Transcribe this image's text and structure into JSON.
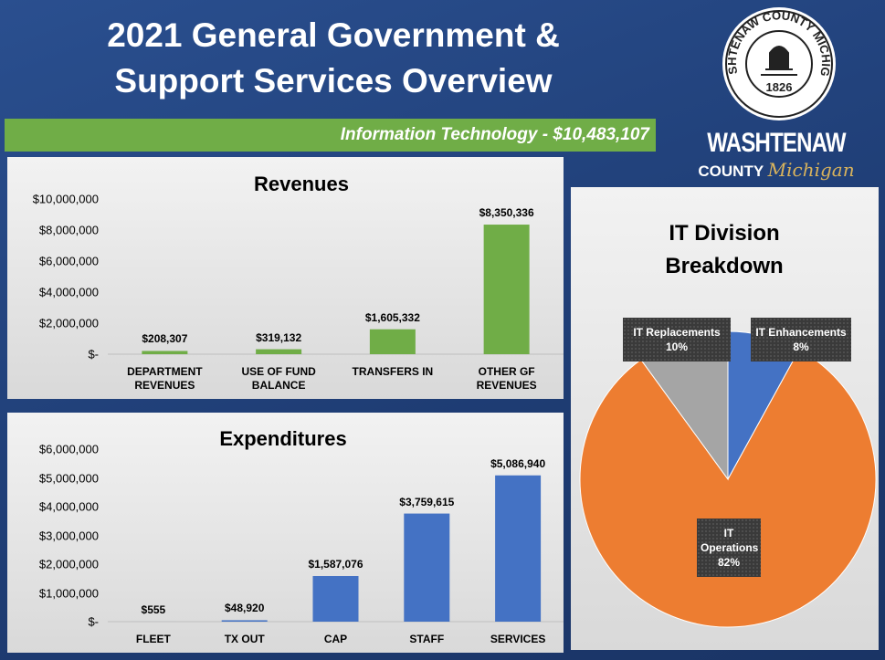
{
  "header": {
    "title": "2021 General Government & Support Services Overview",
    "subtitle": "Information Technology - $10,483,107"
  },
  "logo": {
    "seal_text": "WASHTENAW COUNTY MICHIGAN",
    "seal_year": "1826",
    "name": "WASHTENAW",
    "county": "COUNTY",
    "state": "Michigan"
  },
  "chart_data": [
    {
      "type": "bar",
      "title": "Revenues",
      "categories": [
        "DEPARTMENT REVENUES",
        "USE OF FUND BALANCE",
        "TRANSFERS IN",
        "OTHER GF REVENUES"
      ],
      "values": [
        208307,
        319132,
        1605332,
        8350336
      ],
      "value_labels": [
        "$208,307",
        "$319,132",
        "$1,605,332",
        "$8,350,336"
      ],
      "color": "#70ad47",
      "ylim": [
        0,
        10000000
      ],
      "yticks": [
        {
          "value": 0,
          "label": "$-"
        },
        {
          "value": 2000000,
          "label": "$2,000,000"
        },
        {
          "value": 4000000,
          "label": "$4,000,000"
        },
        {
          "value": 6000000,
          "label": "$6,000,000"
        },
        {
          "value": 8000000,
          "label": "$8,000,000"
        },
        {
          "value": 10000000,
          "label": "$10,000,000"
        }
      ],
      "grid": false
    },
    {
      "type": "bar",
      "title": "Expenditures",
      "categories": [
        "FLEET",
        "TX OUT",
        "CAP",
        "STAFF",
        "SERVICES"
      ],
      "values": [
        555,
        48920,
        1587076,
        3759615,
        5086940
      ],
      "value_labels": [
        "$555",
        "$48,920",
        "$1,587,076",
        "$3,759,615",
        "$5,086,940"
      ],
      "color": "#4472c4",
      "ylim": [
        0,
        6000000
      ],
      "yticks": [
        {
          "value": 0,
          "label": "$-"
        },
        {
          "value": 1000000,
          "label": "$1,000,000"
        },
        {
          "value": 2000000,
          "label": "$2,000,000"
        },
        {
          "value": 3000000,
          "label": "$3,000,000"
        },
        {
          "value": 4000000,
          "label": "$4,000,000"
        },
        {
          "value": 5000000,
          "label": "$5,000,000"
        },
        {
          "value": 6000000,
          "label": "$6,000,000"
        }
      ],
      "grid": false
    },
    {
      "type": "pie",
      "title": "IT  Division Breakdown",
      "categories": [
        "IT Enhancements",
        "IT Operations",
        "IT Replacements"
      ],
      "values": [
        8,
        82,
        10
      ],
      "value_labels": [
        "8%",
        "82%",
        "10%"
      ],
      "colors": [
        "#4472c4",
        "#ed7d31",
        "#a5a5a5"
      ]
    }
  ]
}
